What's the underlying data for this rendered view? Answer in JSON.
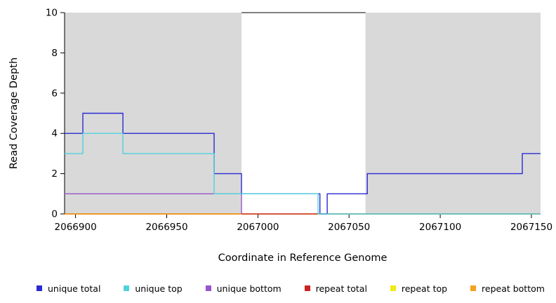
{
  "chart_data": {
    "type": "line",
    "step": true,
    "title": "",
    "xlabel": "Coordinate in Reference Genome",
    "ylabel": "Read Coverage Depth",
    "xlim": [
      2066894,
      2067155
    ],
    "ylim": [
      0,
      10
    ],
    "x_ticks": [
      2066900,
      2066950,
      2067000,
      2067050,
      2067100,
      2067150
    ],
    "y_ticks": [
      0,
      2,
      4,
      6,
      8,
      10
    ],
    "grid": false,
    "background_color": "#ffffff",
    "shaded_region_color": "#d9d9d9",
    "shaded_regions": [
      {
        "x0": 2066894,
        "x1": 2066991
      },
      {
        "x0": 2067059,
        "x1": 2067155
      }
    ],
    "series": [
      {
        "name": "repeat top",
        "color": "#f0ea10",
        "points": [
          [
            2066894,
            0
          ]
        ]
      },
      {
        "name": "repeat total",
        "color": "#cc2222",
        "points": [
          [
            2066894,
            0
          ]
        ]
      },
      {
        "name": "repeat bottom",
        "color": "#f5a01e",
        "points": [
          [
            2066894,
            0
          ]
        ],
        "x_end": 2066991
      },
      {
        "name": "unique bottom",
        "color": "#9955cc",
        "points": [
          [
            2066894,
            1
          ],
          [
            2066991,
            0
          ]
        ],
        "x_end": 2066991
      },
      {
        "name": "unique total",
        "color": "#2a2ad4",
        "points": [
          [
            2066894,
            4
          ],
          [
            2066904,
            5
          ],
          [
            2066926,
            4
          ],
          [
            2066976,
            2
          ],
          [
            2066991,
            1
          ],
          [
            2067034,
            0
          ],
          [
            2067038,
            1
          ],
          [
            2067060,
            2
          ],
          [
            2067145,
            3
          ]
        ]
      },
      {
        "name": "unique top",
        "color": "#4fd2dc",
        "points": [
          [
            2066894,
            3
          ],
          [
            2066904,
            4
          ],
          [
            2066926,
            3
          ],
          [
            2066976,
            1
          ],
          [
            2067033,
            0
          ]
        ]
      }
    ],
    "legend_position": "bottom",
    "legend": [
      {
        "label": "unique total",
        "color": "#2a2ad4"
      },
      {
        "label": "unique top",
        "color": "#4fd2dc"
      },
      {
        "label": "unique bottom",
        "color": "#9955cc"
      },
      {
        "label": "repeat total",
        "color": "#cc2222"
      },
      {
        "label": "repeat top",
        "color": "#f0ea10"
      },
      {
        "label": "repeat bottom",
        "color": "#f5a01e"
      }
    ]
  }
}
